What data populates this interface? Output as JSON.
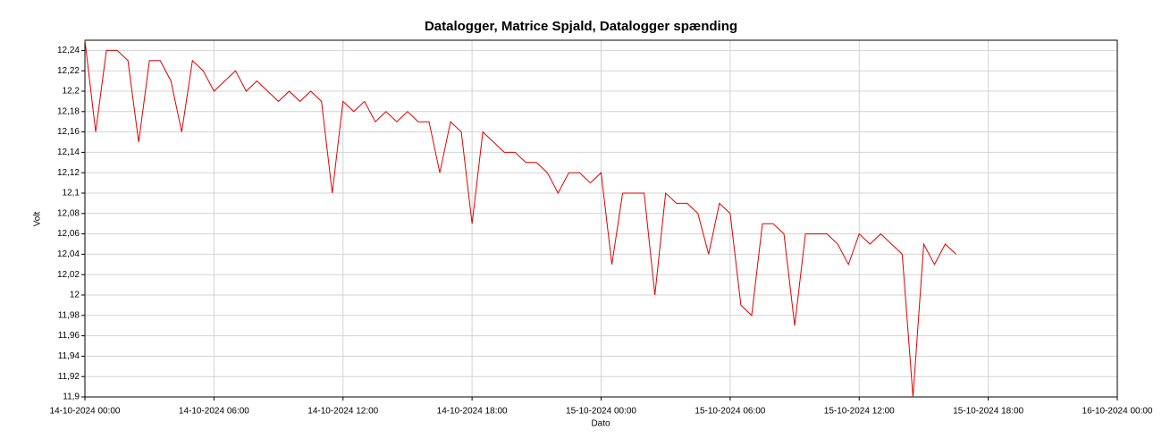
{
  "chart_data": {
    "type": "line",
    "title": "Datalogger, Matrice Spjald, Datalogger spænding",
    "x_label": "Dato",
    "y_label": "Volt",
    "grid": true,
    "xlim": [
      "14-10-2024 00:00",
      "16-10-2024 00:00"
    ],
    "xticks": [
      "14-10-2024 00:00",
      "14-10-2024 06:00",
      "14-10-2024 12:00",
      "14-10-2024 18:00",
      "15-10-2024 00:00",
      "15-10-2024 06:00",
      "15-10-2024 12:00",
      "15-10-2024 18:00",
      "16-10-2024 00:00"
    ],
    "ylim": [
      11.9,
      12.25
    ],
    "yticks": [
      {
        "value": 11.9,
        "label": "11,9"
      },
      {
        "value": 11.92,
        "label": "11,92"
      },
      {
        "value": 11.94,
        "label": "11,94"
      },
      {
        "value": 11.96,
        "label": "11,96"
      },
      {
        "value": 11.98,
        "label": "11,98"
      },
      12,
      {
        "value": 12.02,
        "label": "12,02"
      },
      {
        "value": 12.04,
        "label": "12,04"
      },
      {
        "value": 12.06,
        "label": "12,06"
      },
      {
        "value": 12.08,
        "label": "12,08"
      },
      {
        "value": 12.1,
        "label": "12,1"
      },
      {
        "value": 12.12,
        "label": "12,12"
      },
      {
        "value": 12.14,
        "label": "12,14"
      },
      {
        "value": 12.16,
        "label": "12,16"
      },
      {
        "value": 12.18,
        "label": "12,18"
      },
      {
        "value": 12.2,
        "label": "12,2"
      },
      {
        "value": 12.22,
        "label": "12,22"
      },
      {
        "value": 12.24,
        "label": "12,24"
      }
    ],
    "x": [
      "14-10-2024 00:00",
      "14-10-2024 00:30",
      "14-10-2024 01:00",
      "14-10-2024 01:30",
      "14-10-2024 02:00",
      "14-10-2024 02:30",
      "14-10-2024 03:00",
      "14-10-2024 03:30",
      "14-10-2024 04:00",
      "14-10-2024 04:30",
      "14-10-2024 05:00",
      "14-10-2024 05:30",
      "14-10-2024 06:00",
      "14-10-2024 06:30",
      "14-10-2024 07:00",
      "14-10-2024 07:30",
      "14-10-2024 08:00",
      "14-10-2024 08:30",
      "14-10-2024 09:00",
      "14-10-2024 09:30",
      "14-10-2024 10:00",
      "14-10-2024 10:30",
      "14-10-2024 11:00",
      "14-10-2024 11:30",
      "14-10-2024 12:00",
      "14-10-2024 12:30",
      "14-10-2024 13:00",
      "14-10-2024 13:30",
      "14-10-2024 14:00",
      "14-10-2024 14:30",
      "14-10-2024 15:00",
      "14-10-2024 15:30",
      "14-10-2024 16:00",
      "14-10-2024 16:30",
      "14-10-2024 17:00",
      "14-10-2024 17:30",
      "14-10-2024 18:00",
      "14-10-2024 18:30",
      "14-10-2024 19:00",
      "14-10-2024 19:30",
      "14-10-2024 20:00",
      "14-10-2024 20:30",
      "14-10-2024 21:00",
      "14-10-2024 21:30",
      "14-10-2024 22:00",
      "14-10-2024 22:30",
      "14-10-2024 23:00",
      "14-10-2024 23:30",
      "15-10-2024 00:00",
      "15-10-2024 00:30",
      "15-10-2024 01:00",
      "15-10-2024 01:30",
      "15-10-2024 02:00",
      "15-10-2024 02:30",
      "15-10-2024 03:00",
      "15-10-2024 03:30",
      "15-10-2024 04:00",
      "15-10-2024 04:30",
      "15-10-2024 05:00",
      "15-10-2024 05:30",
      "15-10-2024 06:00",
      "15-10-2024 06:30",
      "15-10-2024 07:00",
      "15-10-2024 07:30",
      "15-10-2024 08:00",
      "15-10-2024 08:30",
      "15-10-2024 09:00",
      "15-10-2024 09:30",
      "15-10-2024 10:00",
      "15-10-2024 10:30",
      "15-10-2024 11:00",
      "15-10-2024 11:30",
      "15-10-2024 12:00",
      "15-10-2024 12:30",
      "15-10-2024 13:00",
      "15-10-2024 13:30",
      "15-10-2024 14:00",
      "15-10-2024 14:30",
      "15-10-2024 15:00",
      "15-10-2024 15:30",
      "15-10-2024 16:00",
      "15-10-2024 16:30"
    ],
    "series": [
      {
        "color": "#e00000",
        "values": [
          12.25,
          12.16,
          12.24,
          12.24,
          12.23,
          12.15,
          12.23,
          12.23,
          12.21,
          12.16,
          12.23,
          12.22,
          12.2,
          12.21,
          12.22,
          12.2,
          12.21,
          12.2,
          12.19,
          12.2,
          12.19,
          12.2,
          12.19,
          12.1,
          12.19,
          12.18,
          12.19,
          12.17,
          12.18,
          12.17,
          12.18,
          12.17,
          12.17,
          12.12,
          12.17,
          12.16,
          12.07,
          12.16,
          12.15,
          12.14,
          12.14,
          12.13,
          12.13,
          12.12,
          12.1,
          12.12,
          12.12,
          12.11,
          12.12,
          12.03,
          12.1,
          12.1,
          12.1,
          12.0,
          12.1,
          12.09,
          12.09,
          12.08,
          12.04,
          12.09,
          12.08,
          11.99,
          11.98,
          12.07,
          12.07,
          12.06,
          11.97,
          12.06,
          12.06,
          12.06,
          12.05,
          12.03,
          12.06,
          12.05,
          12.06,
          12.05,
          12.04,
          11.9,
          12.05,
          12.03,
          12.05,
          12.04
        ]
      }
    ]
  }
}
